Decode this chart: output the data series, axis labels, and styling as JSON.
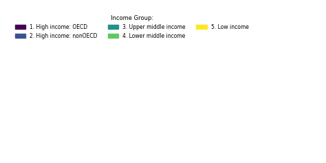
{
  "title": "",
  "legend_title": "Income Group:",
  "categories": [
    "1. High income: OECD",
    "2. High income: nonOECD",
    "3. Upper middle income",
    "4. Lower middle income",
    "5. Low income"
  ],
  "colors": [
    "#440154",
    "#3b528b",
    "#21918c",
    "#5ec962",
    "#fde725"
  ],
  "ocean_color": "#4d6fa3",
  "background_color": "#ffffff",
  "figsize": [
    4.74,
    2.37
  ],
  "dpi": 100,
  "income_group_map": {
    "USA": "1. High income: OECD",
    "CAN": "1. High income: OECD",
    "MEX": "2. High income: nonOECD",
    "GTM": "4. Lower middle income",
    "BLZ": "3. Upper middle income",
    "HND": "4. Lower middle income",
    "SLV": "4. Lower middle income",
    "NIC": "4. Lower middle income",
    "CRI": "3. Upper middle income",
    "PAN": "3. Upper middle income",
    "CUB": "3. Upper middle income",
    "JAM": "3. Upper middle income",
    "HTI": "5. Low income",
    "DOM": "3. Upper middle income",
    "TTO": "2. High income: nonOECD",
    "VEN": "3. Upper middle income",
    "COL": "3. Upper middle income",
    "ECU": "3. Upper middle income",
    "PER": "3. Upper middle income",
    "BOL": "4. Lower middle income",
    "BRA": "3. Upper middle income",
    "PRY": "3. Upper middle income",
    "URY": "2. High income: nonOECD",
    "ARG": "3. Upper middle income",
    "CHL": "2. High income: nonOECD",
    "GUY": "3. Upper middle income",
    "SUR": "3. Upper middle income",
    "GBR": "1. High income: OECD",
    "IRL": "1. High income: OECD",
    "PRT": "1. High income: OECD",
    "ESP": "1. High income: OECD",
    "FRA": "1. High income: OECD",
    "BEL": "1. High income: OECD",
    "NLD": "1. High income: OECD",
    "LUX": "1. High income: OECD",
    "DEU": "1. High income: OECD",
    "DNK": "1. High income: OECD",
    "NOR": "1. High income: OECD",
    "SWE": "1. High income: OECD",
    "FIN": "1. High income: OECD",
    "ISL": "1. High income: OECD",
    "CHE": "1. High income: OECD",
    "AUT": "1. High income: OECD",
    "ITA": "1. High income: OECD",
    "GRC": "1. High income: OECD",
    "TUR": "3. Upper middle income",
    "POL": "2. High income: nonOECD",
    "CZE": "1. High income: OECD",
    "SVK": "1. High income: OECD",
    "HUN": "2. High income: nonOECD",
    "ROU": "3. Upper middle income",
    "BGR": "3. Upper middle income",
    "HRV": "2. High income: nonOECD",
    "SVN": "1. High income: OECD",
    "SRB": "3. Upper middle income",
    "BIH": "3. Upper middle income",
    "ALB": "3. Upper middle income",
    "MKD": "3. Upper middle income",
    "MNE": "3. Upper middle income",
    "MDA": "4. Lower middle income",
    "UKR": "4. Lower middle income",
    "BLR": "3. Upper middle income",
    "LTU": "2. High income: nonOECD",
    "LVA": "2. High income: nonOECD",
    "EST": "2. High income: nonOECD",
    "RUS": "3. Upper middle income",
    "GEO": "4. Lower middle income",
    "ARM": "4. Lower middle income",
    "AZE": "3. Upper middle income",
    "KAZ": "3. Upper middle income",
    "UZB": "4. Lower middle income",
    "TKM": "3. Upper middle income",
    "TJK": "5. Low income",
    "KGZ": "4. Lower middle income",
    "MNG": "4. Lower middle income",
    "CHN": "3. Upper middle income",
    "JPN": "1. High income: OECD",
    "KOR": "1. High income: OECD",
    "PRK": "5. Low income",
    "TWN": "2. High income: nonOECD",
    "IND": "4. Lower middle income",
    "PAK": "4. Lower middle income",
    "BGD": "4. Lower middle income",
    "NPL": "5. Low income",
    "BTN": "4. Lower middle income",
    "LKA": "4. Lower middle income",
    "MMR": "4. Lower middle income",
    "THA": "3. Upper middle income",
    "VNM": "4. Lower middle income",
    "LAO": "4. Lower middle income",
    "KHM": "4. Lower middle income",
    "MYS": "3. Upper middle income",
    "SGP": "2. High income: nonOECD",
    "IDN": "4. Lower middle income",
    "PHL": "4. Lower middle income",
    "PNG": "4. Lower middle income",
    "AUS": "1. High income: OECD",
    "NZL": "1. High income: OECD",
    "IRN": "3. Upper middle income",
    "IRQ": "3. Upper middle income",
    "SYR": "4. Lower middle income",
    "LBN": "3. Upper middle income",
    "JOR": "3. Upper middle income",
    "ISR": "1. High income: OECD",
    "SAU": "2. High income: nonOECD",
    "YEM": "5. Low income",
    "OMN": "2. High income: nonOECD",
    "ARE": "2. High income: nonOECD",
    "QAT": "2. High income: nonOECD",
    "KWT": "2. High income: nonOECD",
    "BHR": "2. High income: nonOECD",
    "AFG": "5. Low income",
    "EGY": "4. Lower middle income",
    "LBY": "3. Upper middle income",
    "TUN": "3. Upper middle income",
    "DZA": "3. Upper middle income",
    "MAR": "4. Lower middle income",
    "MRT": "4. Lower middle income",
    "MLI": "5. Low income",
    "NER": "5. Low income",
    "TCD": "5. Low income",
    "SDN": "4. Lower middle income",
    "ETH": "5. Low income",
    "ERI": "5. Low income",
    "DJI": "4. Lower middle income",
    "SOM": "5. Low income",
    "KEN": "4. Lower middle income",
    "UGA": "5. Low income",
    "TZA": "5. Low income",
    "RWA": "5. Low income",
    "BDI": "5. Low income",
    "MOZ": "5. Low income",
    "ZMB": "4. Lower middle income",
    "ZWE": "5. Low income",
    "MWI": "5. Low income",
    "MDG": "5. Low income",
    "ZAF": "3. Upper middle income",
    "NAM": "3. Upper middle income",
    "BWA": "3. Upper middle income",
    "LSO": "4. Lower middle income",
    "SWZ": "4. Lower middle income",
    "AGO": "3. Upper middle income",
    "COD": "5. Low income",
    "COG": "4. Lower middle income",
    "CMR": "4. Lower middle income",
    "NGA": "4. Lower middle income",
    "GHA": "4. Lower middle income",
    "CIV": "4. Lower middle income",
    "LBR": "5. Low income",
    "SLE": "5. Low income",
    "GIN": "5. Low income",
    "GNB": "5. Low income",
    "SEN": "4. Lower middle income",
    "GMB": "5. Low income",
    "BFA": "5. Low income",
    "BEN": "5. Low income",
    "TGO": "5. Low income",
    "GNQ": "3. Upper middle income",
    "GAB": "3. Upper middle income",
    "CAF": "5. Low income",
    "SSD": "5. Low income"
  }
}
